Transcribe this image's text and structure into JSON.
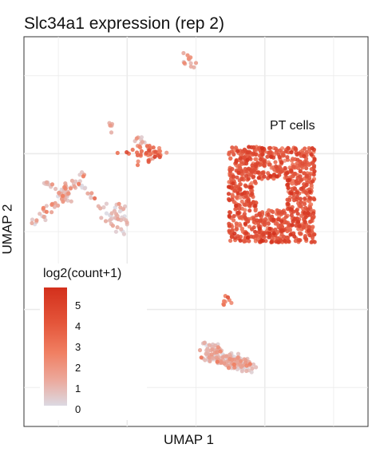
{
  "chart_data": {
    "type": "scatter",
    "title": "Slc34a1 expression (rep 2)",
    "xlabel": "UMAP 1",
    "ylabel": "UMAP 2",
    "grid": true,
    "axis_tick_labels": "none",
    "annotations": [
      {
        "text": "PT cells",
        "near_cluster": "pt-cells"
      }
    ],
    "legend": {
      "title": "log2(count+1)",
      "placement": "bottom-left-inside",
      "ticks": [
        "5",
        "4",
        "3",
        "2",
        "1",
        "0"
      ],
      "range": [
        0,
        5.6
      ],
      "colors": {
        "low": "#dcd9e2",
        "mid": "#f07f62",
        "high": "#d3301c"
      }
    },
    "clusters": [
      {
        "id": "pt-cells",
        "shape": "ring",
        "cx": 0.72,
        "cy": 0.595,
        "w": 0.25,
        "h": 0.245,
        "hole_w": 0.09,
        "hole_h": 0.08,
        "n": 900,
        "level_mean": 4.2,
        "level_sd": 0.7
      },
      {
        "id": "top-small",
        "shape": "blob",
        "cx": 0.48,
        "cy": 0.935,
        "w": 0.018,
        "h": 0.02,
        "n": 12,
        "level_mean": 1.8,
        "level_sd": 0.8
      },
      {
        "id": "small-dot",
        "shape": "blob",
        "cx": 0.255,
        "cy": 0.77,
        "w": 0.012,
        "h": 0.012,
        "n": 5,
        "level_mean": 1.6,
        "level_sd": 0.8
      },
      {
        "id": "mid-upper",
        "shape": "blob",
        "cx": 0.355,
        "cy": 0.705,
        "w": 0.06,
        "h": 0.022,
        "n": 45,
        "level_mean": 3.2,
        "level_sd": 1.0
      },
      {
        "id": "mid-upper-tail",
        "shape": "blob",
        "cx": 0.335,
        "cy": 0.735,
        "w": 0.015,
        "h": 0.015,
        "n": 8,
        "level_mean": 1.8,
        "level_sd": 0.9
      },
      {
        "id": "left-arm-main",
        "shape": "line",
        "x1": 0.02,
        "y1": 0.52,
        "x2": 0.18,
        "y2": 0.65,
        "width": 0.02,
        "n": 55,
        "level_mean": 1.6,
        "level_sd": 1.0
      },
      {
        "id": "left-arm-branch",
        "shape": "line",
        "x1": 0.06,
        "y1": 0.63,
        "x2": 0.14,
        "y2": 0.58,
        "width": 0.012,
        "n": 20,
        "level_mean": 1.4,
        "level_sd": 1.0
      },
      {
        "id": "left-arm-tail",
        "shape": "line",
        "x1": 0.16,
        "y1": 0.63,
        "x2": 0.22,
        "y2": 0.56,
        "width": 0.012,
        "n": 14,
        "level_mean": 1.3,
        "level_sd": 1.0
      },
      {
        "id": "round-blob",
        "shape": "blob",
        "cx": 0.27,
        "cy": 0.535,
        "w": 0.04,
        "h": 0.04,
        "n": 40,
        "level_mean": 0.8,
        "level_sd": 0.7
      },
      {
        "id": "small-mid",
        "shape": "blob",
        "cx": 0.59,
        "cy": 0.32,
        "w": 0.012,
        "h": 0.015,
        "n": 8,
        "level_mean": 3.4,
        "level_sd": 0.8
      },
      {
        "id": "bottom-cluster",
        "shape": "tri",
        "cx": 0.595,
        "cy": 0.17,
        "w": 0.14,
        "h": 0.1,
        "n": 160,
        "level_mean": 1.0,
        "level_sd": 0.9
      }
    ]
  }
}
